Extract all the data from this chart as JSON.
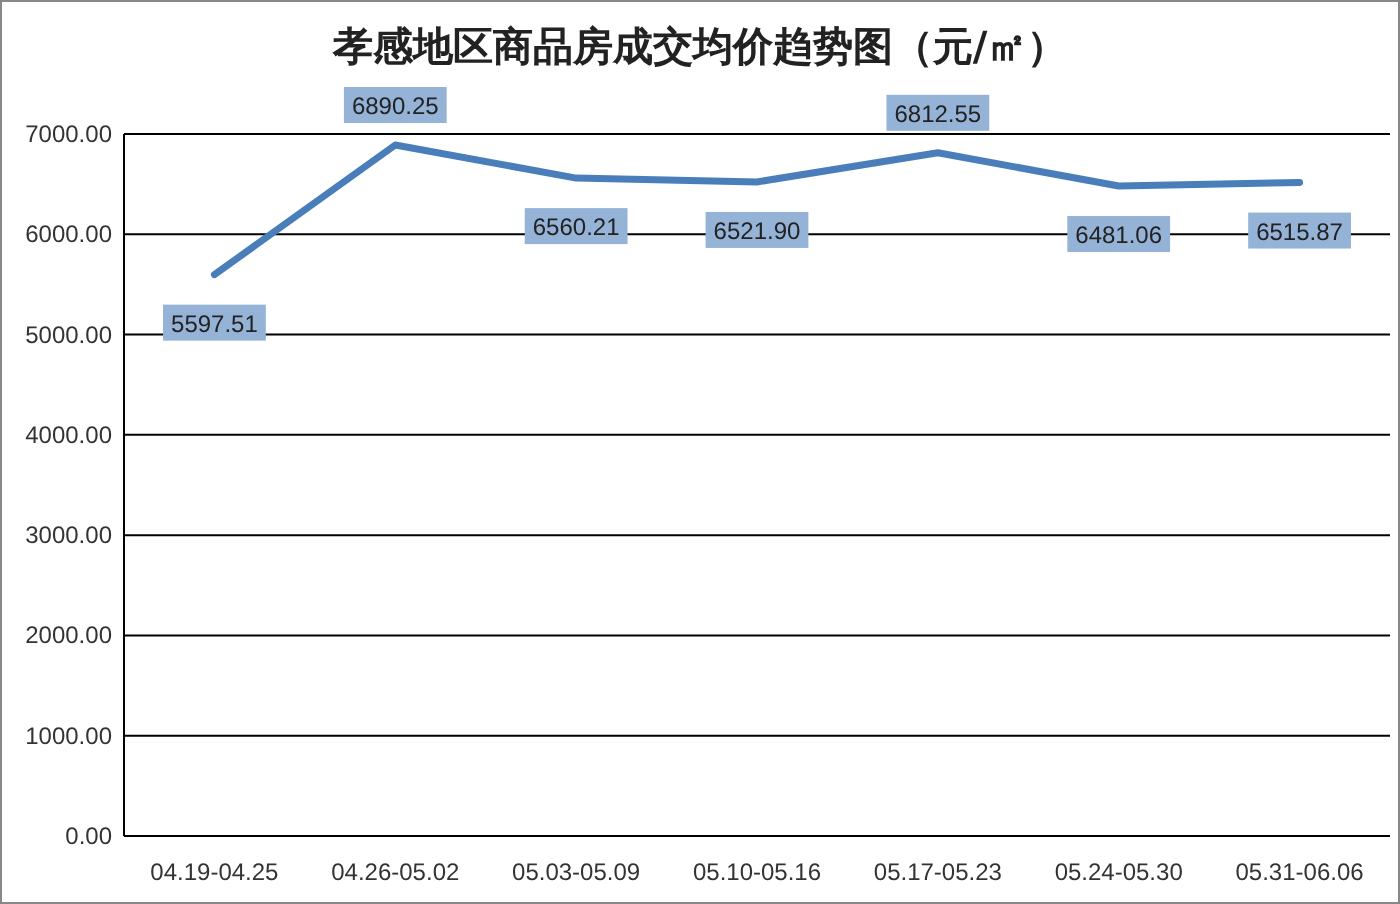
{
  "chart_data": {
    "type": "line",
    "title": "孝感地区商品房成交均价趋势图（元/㎡）",
    "categories": [
      "04.19-04.25",
      "04.26-05.02",
      "05.03-05.09",
      "05.10-05.16",
      "05.17-05.23",
      "05.24-05.30",
      "05.31-06.06"
    ],
    "values": [
      5597.51,
      6890.25,
      6560.21,
      6521.9,
      6812.55,
      6481.06,
      6515.87
    ],
    "value_labels": [
      "5597.51",
      "6890.25",
      "6560.21",
      "6521.90",
      "6812.55",
      "6481.06",
      "6515.87"
    ],
    "color": "#4a7ebb",
    "ylim": [
      0,
      7000
    ],
    "yticks": [
      {
        "value": 0,
        "label": "0.00"
      },
      {
        "value": 1000,
        "label": "1000.00"
      },
      {
        "value": 2000,
        "label": "2000.00"
      },
      {
        "value": 3000,
        "label": "3000.00"
      },
      {
        "value": 4000,
        "label": "4000.00"
      },
      {
        "value": 5000,
        "label": "5000.00"
      },
      {
        "value": 6000,
        "label": "6000.00"
      },
      {
        "value": 7000,
        "label": "7000.00"
      }
    ],
    "grid": "y",
    "marker": "none",
    "line_style": "solid"
  }
}
